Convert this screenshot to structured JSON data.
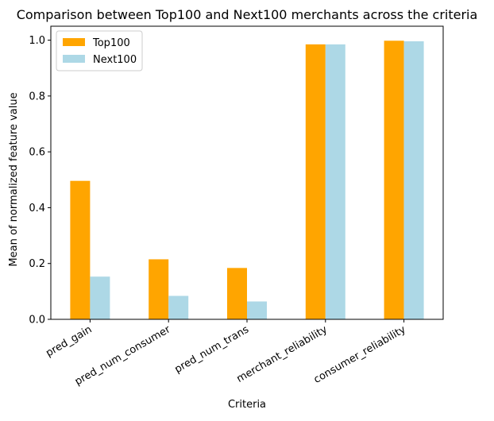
{
  "chart_data": {
    "type": "bar",
    "title": "Comparison between Top100 and Next100 merchants across the criteria",
    "xlabel": "Criteria",
    "ylabel": "Mean of normalized feature value",
    "categories": [
      "pred_gain",
      "pred_num_consumer",
      "pred_num_trans",
      "merchant_reliability",
      "consumer_reliability"
    ],
    "series": [
      {
        "name": "Top100",
        "color": "#ffa500",
        "values": [
          0.496,
          0.215,
          0.184,
          0.985,
          0.998
        ]
      },
      {
        "name": "Next100",
        "color": "#add8e6",
        "values": [
          0.153,
          0.084,
          0.064,
          0.985,
          0.996
        ]
      }
    ],
    "ylim": [
      0,
      1.05
    ],
    "yticks": [
      0.0,
      0.2,
      0.4,
      0.6,
      0.8,
      1.0
    ],
    "ytick_labels": [
      "0.0",
      "0.2",
      "0.4",
      "0.6",
      "0.8",
      "1.0"
    ],
    "legend": "top-left",
    "grid": false
  }
}
